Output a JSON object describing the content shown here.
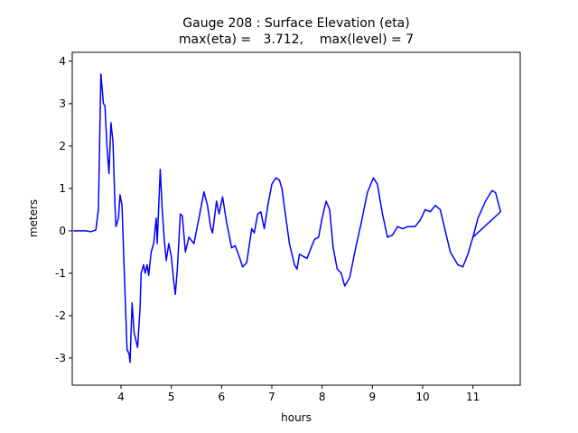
{
  "chart_data": {
    "type": "line",
    "title": [
      "Gauge 208 : Surface Elevation (eta)",
      "max(eta) =   3.712,    max(level) = 7"
    ],
    "x_label": "hours",
    "y_label": "meters",
    "xlim": [
      3.03,
      11.94
    ],
    "ylim": [
      -3.64,
      4.21
    ],
    "xticks": [
      4,
      5,
      6,
      7,
      8,
      9,
      10,
      11
    ],
    "yticks": [
      -3,
      -2,
      -1,
      0,
      1,
      2,
      3,
      4
    ],
    "grid": false,
    "series": [
      {
        "name": "eta",
        "color": "#0000ff",
        "x": [
          3.05,
          3.3,
          3.4,
          3.5,
          3.55,
          3.6,
          3.65,
          3.68,
          3.72,
          3.76,
          3.8,
          3.84,
          3.88,
          3.9,
          3.95,
          3.98,
          4.02,
          4.06,
          4.12,
          4.16,
          4.18,
          4.22,
          4.26,
          4.33,
          4.38,
          4.4,
          4.45,
          4.48,
          4.52,
          4.55,
          4.6,
          4.65,
          4.7,
          4.72,
          4.78,
          4.82,
          4.86,
          4.9,
          4.95,
          5.0,
          5.05,
          5.08,
          5.12,
          5.18,
          5.22,
          5.28,
          5.35,
          5.45,
          5.55,
          5.65,
          5.72,
          5.78,
          5.82,
          5.9,
          5.95,
          6.02,
          6.1,
          6.2,
          6.27,
          6.35,
          6.42,
          6.5,
          6.6,
          6.65,
          6.72,
          6.78,
          6.85,
          6.92,
          7.0,
          7.08,
          7.15,
          7.2,
          7.28,
          7.35,
          7.45,
          7.5,
          7.55,
          7.62,
          7.7,
          7.78,
          7.85,
          7.93,
          8.0,
          8.08,
          8.15,
          8.22,
          8.3,
          8.38,
          8.45,
          8.55,
          8.65,
          8.78,
          8.9,
          9.02,
          9.1,
          9.2,
          9.3,
          9.4,
          9.5,
          9.6,
          9.7,
          9.85,
          9.95,
          10.05,
          10.15,
          10.25,
          10.35,
          10.45,
          10.55,
          10.7,
          10.8,
          10.9,
          11.0,
          11.1,
          11.25,
          11.38,
          11.45,
          11.55,
          11.0
        ],
        "values": [
          0.0,
          0.0,
          -0.02,
          0.02,
          0.5,
          3.7,
          3.0,
          2.95,
          2.0,
          1.35,
          2.55,
          2.1,
          0.6,
          0.1,
          0.3,
          0.85,
          0.6,
          -0.8,
          -2.8,
          -2.9,
          -3.1,
          -1.7,
          -2.4,
          -2.75,
          -1.8,
          -1.0,
          -0.8,
          -1.0,
          -0.8,
          -1.05,
          -0.5,
          -0.3,
          0.3,
          -0.3,
          1.45,
          0.5,
          -0.2,
          -0.7,
          -0.3,
          -0.6,
          -1.2,
          -1.5,
          -0.9,
          0.4,
          0.35,
          -0.5,
          -0.15,
          -0.3,
          0.3,
          0.92,
          0.6,
          0.1,
          -0.05,
          0.7,
          0.4,
          0.8,
          0.2,
          -0.4,
          -0.35,
          -0.6,
          -0.85,
          -0.75,
          0.05,
          -0.05,
          0.4,
          0.45,
          0.05,
          0.6,
          1.1,
          1.25,
          1.2,
          1.0,
          0.3,
          -0.3,
          -0.8,
          -0.9,
          -0.55,
          -0.6,
          -0.65,
          -0.4,
          -0.2,
          -0.15,
          0.3,
          0.7,
          0.5,
          -0.4,
          -0.9,
          -1.0,
          -1.3,
          -1.1,
          -0.5,
          0.2,
          0.9,
          1.25,
          1.1,
          0.4,
          -0.15,
          -0.1,
          0.1,
          0.05,
          0.1,
          0.1,
          0.25,
          0.5,
          0.45,
          0.6,
          0.5,
          0.0,
          -0.5,
          -0.8,
          -0.85,
          -0.55,
          -0.15,
          0.3,
          0.7,
          0.95,
          0.9,
          0.45,
          -0.15
        ]
      }
    ]
  }
}
